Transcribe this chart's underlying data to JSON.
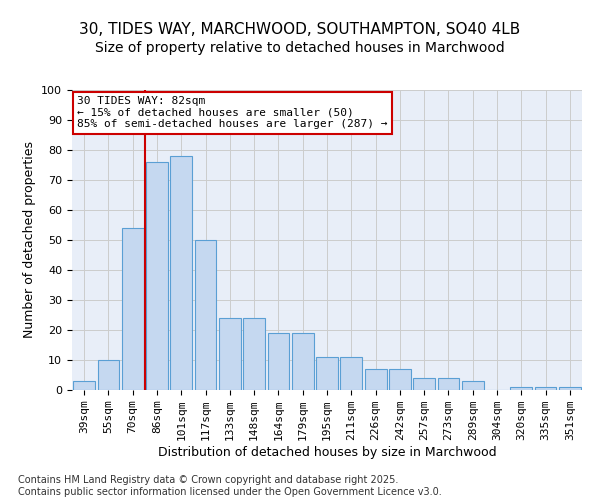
{
  "title_line1": "30, TIDES WAY, MARCHWOOD, SOUTHAMPTON, SO40 4LB",
  "title_line2": "Size of property relative to detached houses in Marchwood",
  "xlabel": "Distribution of detached houses by size in Marchwood",
  "ylabel": "Number of detached properties",
  "categories": [
    "39sqm",
    "55sqm",
    "70sqm",
    "86sqm",
    "101sqm",
    "117sqm",
    "133sqm",
    "148sqm",
    "164sqm",
    "179sqm",
    "195sqm",
    "211sqm",
    "226sqm",
    "242sqm",
    "257sqm",
    "273sqm",
    "289sqm",
    "304sqm",
    "320sqm",
    "335sqm",
    "351sqm"
  ],
  "values": [
    3,
    10,
    54,
    76,
    78,
    50,
    24,
    24,
    19,
    19,
    11,
    11,
    7,
    7,
    4,
    4,
    3,
    0,
    1,
    1,
    1
  ],
  "bar_color": "#c5d8f0",
  "bar_edge_color": "#5a9fd4",
  "vline_x": 2.5,
  "vline_color": "#cc0000",
  "annotation_text": "30 TIDES WAY: 82sqm\n← 15% of detached houses are smaller (50)\n85% of semi-detached houses are larger (287) →",
  "annotation_box_color": "#cc0000",
  "ylim": [
    0,
    100
  ],
  "yticks": [
    0,
    10,
    20,
    30,
    40,
    50,
    60,
    70,
    80,
    90,
    100
  ],
  "grid_color": "#cccccc",
  "background_color": "#e8eef8",
  "footer_text": "Contains HM Land Registry data © Crown copyright and database right 2025.\nContains public sector information licensed under the Open Government Licence v3.0.",
  "title_fontsize": 11,
  "subtitle_fontsize": 10,
  "axis_label_fontsize": 9,
  "tick_fontsize": 8,
  "annotation_fontsize": 8,
  "footer_fontsize": 7
}
